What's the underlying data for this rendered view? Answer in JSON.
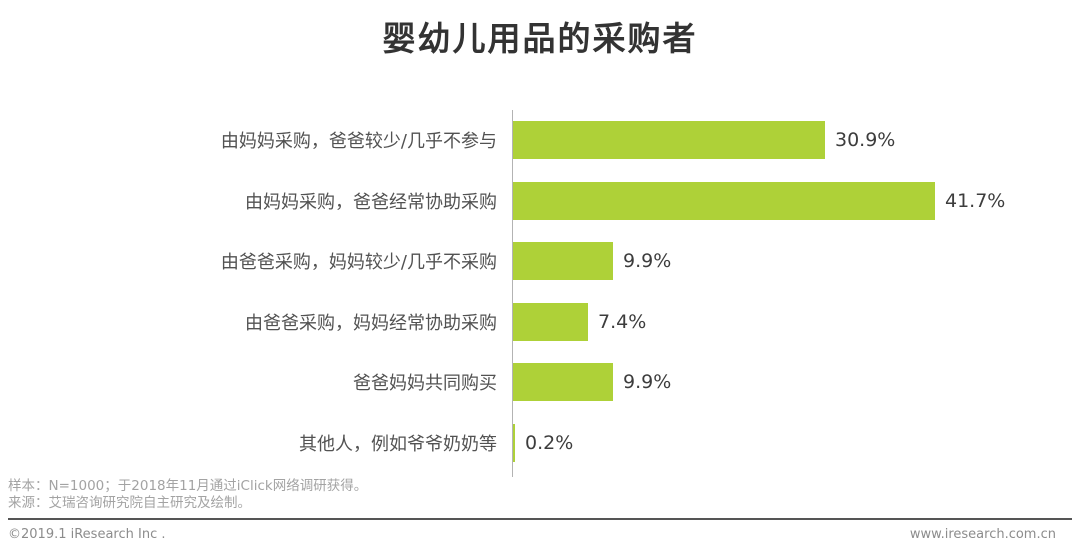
{
  "chart_data": {
    "type": "bar",
    "orientation": "horizontal",
    "title": "婴幼儿用品的采购者",
    "categories": [
      "由妈妈采购，爸爸较少/几乎不参与",
      "由妈妈采购，爸爸经常协助采购",
      "由爸爸采购，妈妈较少/几乎不采购",
      "由爸爸采购，妈妈经常协助采购",
      "爸爸妈妈共同购买",
      "其他人，例如爷爷奶奶等"
    ],
    "values": [
      30.9,
      41.7,
      9.9,
      7.4,
      9.9,
      0.2
    ],
    "value_labels": [
      "30.9%",
      "41.7%",
      "9.9%",
      "7.4%",
      "9.9%",
      "0.2%"
    ],
    "xlim": [
      0,
      45
    ],
    "grid": false,
    "legend": "none",
    "bar_color": "#aed138",
    "axis_color": "#b3b3b3"
  },
  "notes": {
    "sample": "样本：N=1000；于2018年11月通过iClick网络调研获得。",
    "source": "来源：艾瑞咨询研究院自主研究及绘制。"
  },
  "footer": {
    "copyright": "©2019.1 iResearch Inc .",
    "website": "www.iresearch.com.cn"
  }
}
